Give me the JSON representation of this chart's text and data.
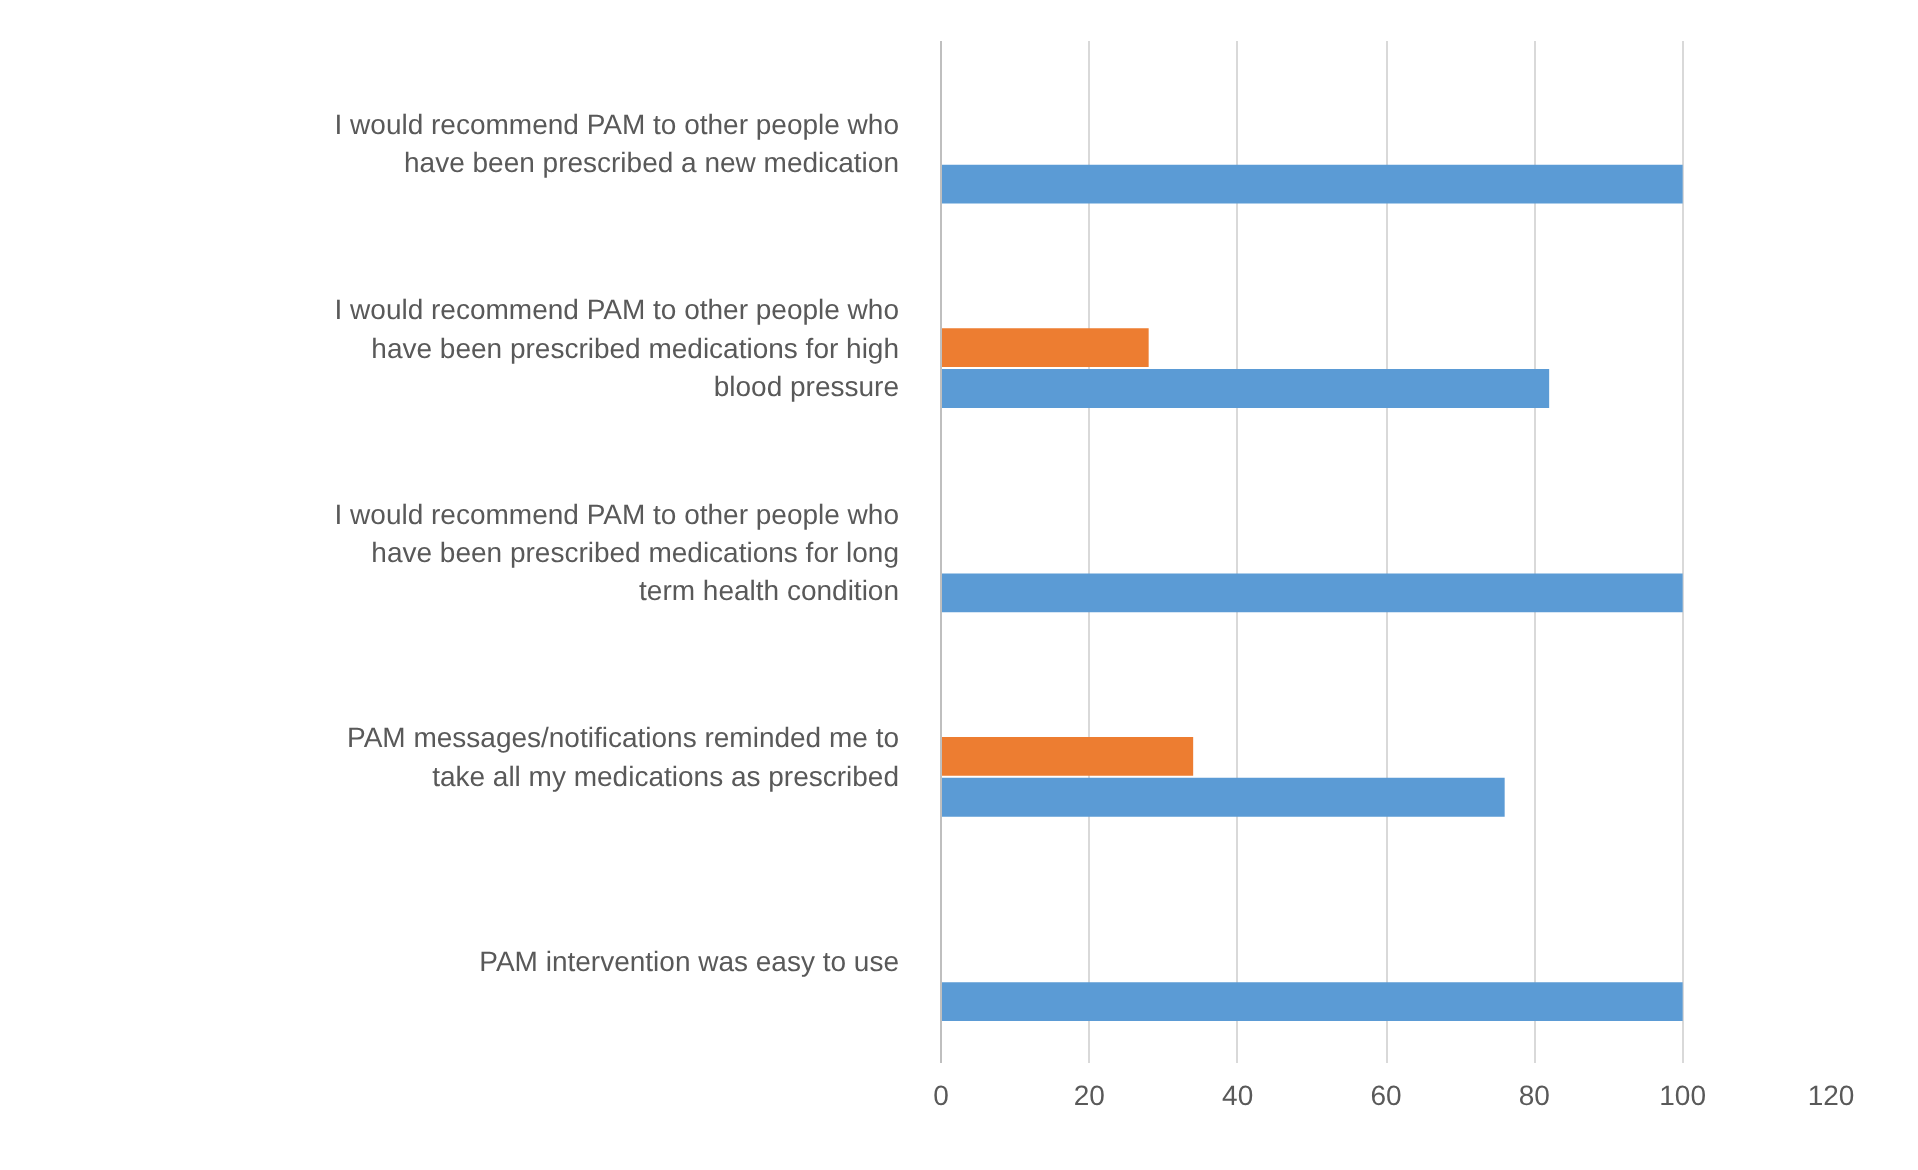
{
  "chart_data": {
    "type": "bar",
    "orientation": "horizontal",
    "categories": [
      "I would recommend PAM to other people who have been prescribed a new medication",
      "I would recommend PAM to other people who have been prescribed medications for high blood pressure",
      "I would recommend PAM to other people who have been prescribed medications for long term health condition",
      "PAM messages/notifications reminded me to take all my medications as prescribed",
      "PAM intervention was easy to use"
    ],
    "series": [
      {
        "color": "#ed7d31",
        "values": [
          null,
          28,
          null,
          34,
          null
        ]
      },
      {
        "color": "#5b9bd5",
        "values": [
          100,
          82,
          100,
          76,
          100
        ]
      }
    ],
    "xlim": [
      0,
      120
    ],
    "xticks": [
      0,
      20,
      40,
      60,
      80,
      100,
      120
    ],
    "grid": "x"
  }
}
